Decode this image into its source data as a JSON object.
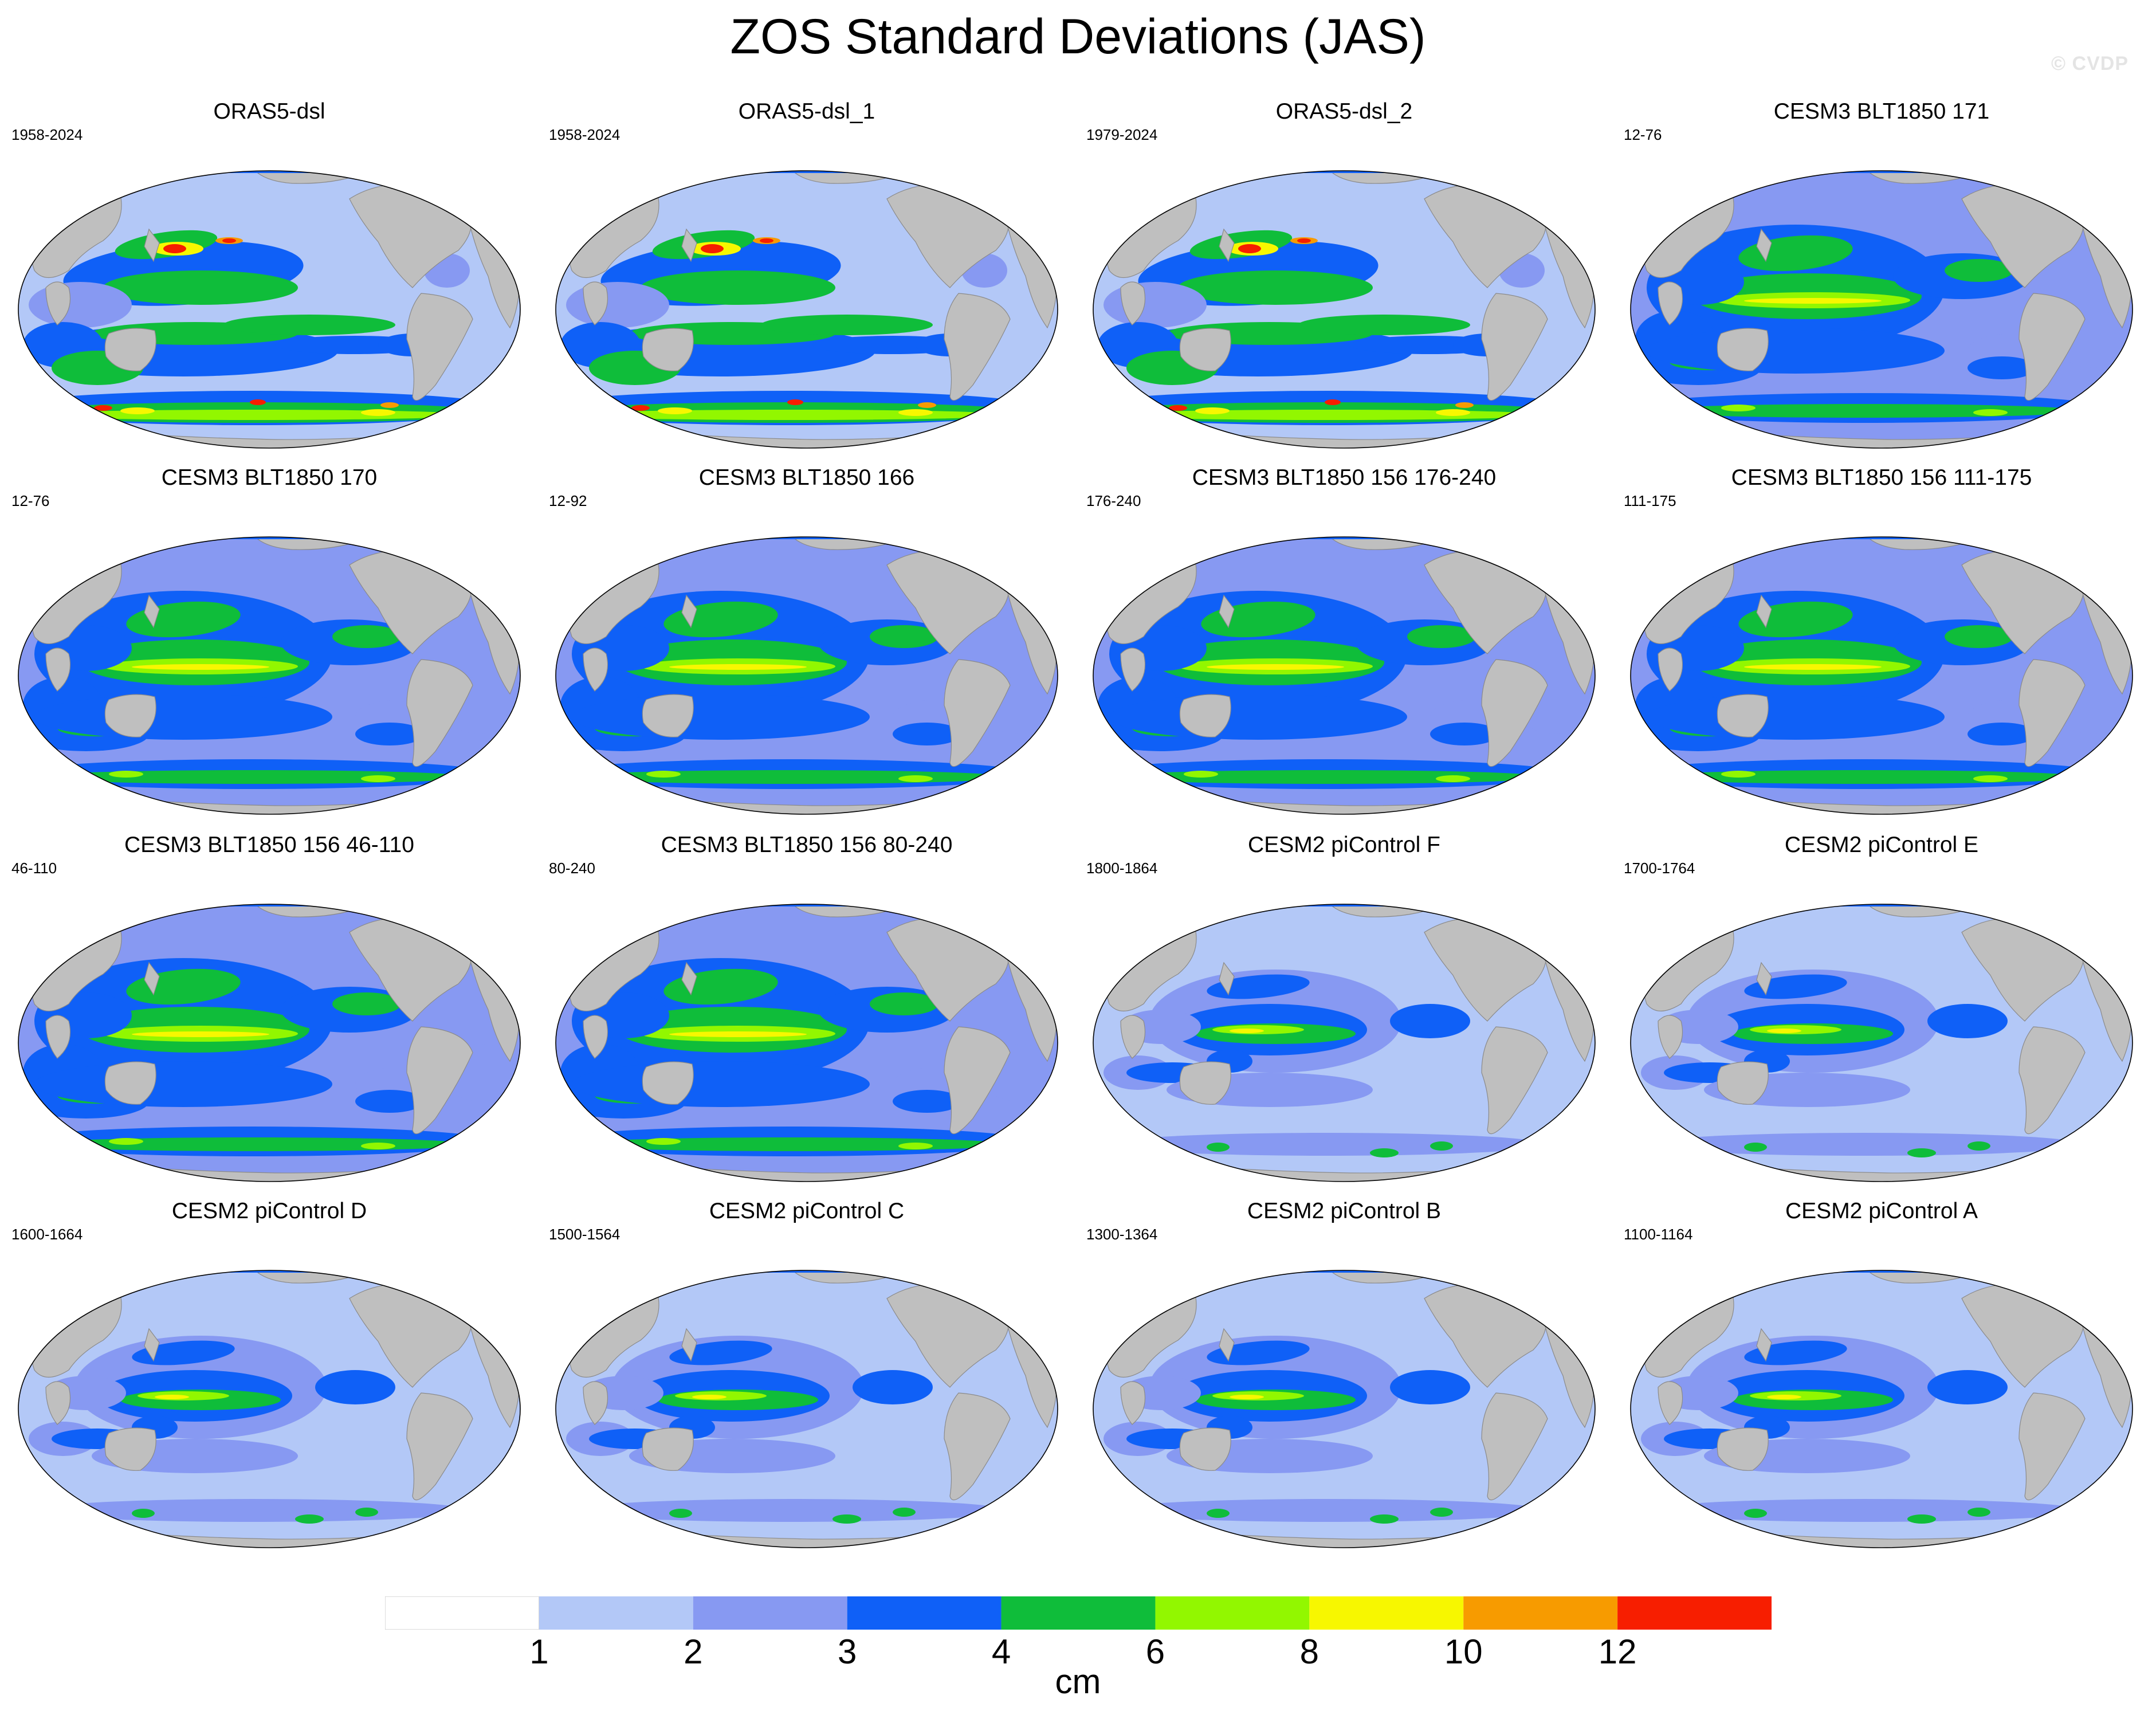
{
  "title": "ZOS Standard Deviations (JAS)",
  "watermark": "© CVDP",
  "colorbar": {
    "unit": "cm",
    "ticks": [
      "1",
      "2",
      "3",
      "4",
      "6",
      "8",
      "10",
      "12"
    ],
    "colors": [
      "#ffffff",
      "#b3c8f7",
      "#8799f2",
      "#0f60f7",
      "#0fbd3a",
      "#92f700",
      "#f7f700",
      "#f79b00",
      "#f71e00"
    ]
  },
  "panels": [
    {
      "title": "ORAS5-dsl",
      "years": "1958-2024",
      "pattern": "ocean_reanalysis"
    },
    {
      "title": "ORAS5-dsl_1",
      "years": "1958-2024",
      "pattern": "ocean_reanalysis"
    },
    {
      "title": "ORAS5-dsl_2",
      "years": "1979-2024",
      "pattern": "ocean_reanalysis"
    },
    {
      "title": "CESM3 BLT1850 171",
      "years": "12-76",
      "pattern": "cesm3"
    },
    {
      "title": "CESM3 BLT1850 170",
      "years": "12-76",
      "pattern": "cesm3"
    },
    {
      "title": "CESM3 BLT1850 166",
      "years": "12-92",
      "pattern": "cesm3"
    },
    {
      "title": "CESM3 BLT1850 156 176-240",
      "years": "176-240",
      "pattern": "cesm3"
    },
    {
      "title": "CESM3 BLT1850 156 111-175",
      "years": "111-175",
      "pattern": "cesm3"
    },
    {
      "title": "CESM3 BLT1850 156 46-110",
      "years": "46-110",
      "pattern": "cesm3"
    },
    {
      "title": "CESM3 BLT1850 156 80-240",
      "years": "80-240",
      "pattern": "cesm3"
    },
    {
      "title": "CESM2 piControl F",
      "years": "1800-1864",
      "pattern": "cesm2"
    },
    {
      "title": "CESM2 piControl E",
      "years": "1700-1764",
      "pattern": "cesm2"
    },
    {
      "title": "CESM2 piControl D",
      "years": "1600-1664",
      "pattern": "cesm2"
    },
    {
      "title": "CESM2 piControl C",
      "years": "1500-1564",
      "pattern": "cesm2"
    },
    {
      "title": "CESM2 piControl B",
      "years": "1300-1364",
      "pattern": "cesm2"
    },
    {
      "title": "CESM2 piControl A",
      "years": "1100-1164",
      "pattern": "cesm2"
    }
  ]
}
